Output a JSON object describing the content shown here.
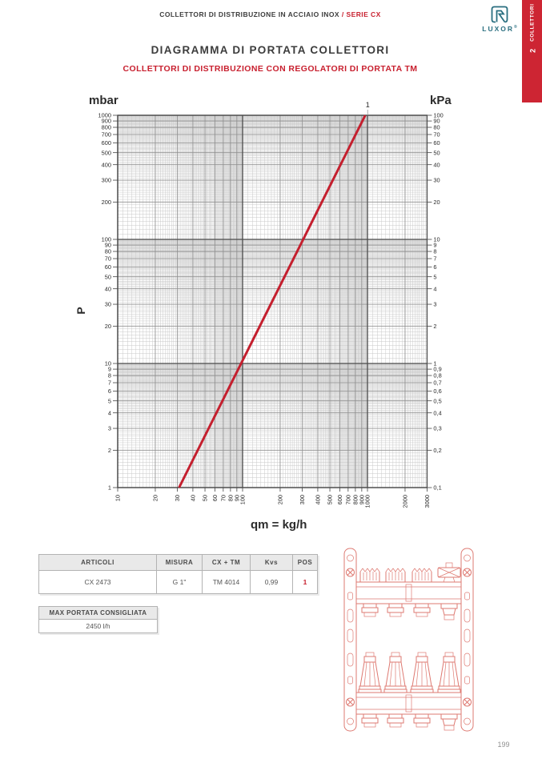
{
  "header": {
    "breadcrumb_plain": "COLLETTORI DI DISTRIBUZIONE IN ACCIAIO INOX",
    "breadcrumb_accent": " / SERIE CX",
    "logo_text": "LUXOR",
    "logo_reg": "®"
  },
  "side_tab": {
    "number": "2",
    "label": "COLLETTORI"
  },
  "title": "DIAGRAMMA DI PORTATA COLLETTORI",
  "subtitle": "COLLETTORI DI DISTRIBUZIONE CON REGOLATORI DI PORTATA TM",
  "chart_data": {
    "type": "line",
    "grid": "log-log dense",
    "x_axis": {
      "label": "qm = kg/h",
      "scale": "log",
      "range": [
        10,
        3000
      ],
      "ticks": [
        10,
        20,
        30,
        40,
        50,
        60,
        70,
        80,
        90,
        100,
        200,
        300,
        400,
        500,
        600,
        700,
        800,
        900,
        1000,
        2000,
        3000
      ]
    },
    "y_axis_left": {
      "unit": "mbar",
      "label": "P",
      "scale": "log",
      "range": [
        1,
        1000
      ],
      "ticks": [
        1000,
        900,
        800,
        700,
        600,
        500,
        400,
        300,
        200,
        100,
        90,
        80,
        70,
        60,
        50,
        40,
        30,
        20,
        10,
        9,
        8,
        7,
        6,
        5,
        4,
        3,
        2,
        1
      ]
    },
    "y_axis_right": {
      "unit": "kPa",
      "scale": "log",
      "range": [
        0.1,
        100
      ],
      "ticks": [
        {
          "v": 100,
          "l": "100"
        },
        {
          "v": 90,
          "l": "90"
        },
        {
          "v": 80,
          "l": "80"
        },
        {
          "v": 70,
          "l": "70"
        },
        {
          "v": 60,
          "l": "60"
        },
        {
          "v": 50,
          "l": "50"
        },
        {
          "v": 40,
          "l": "40"
        },
        {
          "v": 30,
          "l": "30"
        },
        {
          "v": 20,
          "l": "20"
        },
        {
          "v": 10,
          "l": "10"
        },
        {
          "v": 9,
          "l": "9"
        },
        {
          "v": 8,
          "l": "8"
        },
        {
          "v": 7,
          "l": "7"
        },
        {
          "v": 6,
          "l": "6"
        },
        {
          "v": 5,
          "l": "5"
        },
        {
          "v": 4,
          "l": "4"
        },
        {
          "v": 3,
          "l": "3"
        },
        {
          "v": 2,
          "l": "2"
        },
        {
          "v": 1,
          "l": "1"
        },
        {
          "v": 0.9,
          "l": "0,9"
        },
        {
          "v": 0.8,
          "l": "0,8"
        },
        {
          "v": 0.7,
          "l": "0,7"
        },
        {
          "v": 0.6,
          "l": "0,6"
        },
        {
          "v": 0.5,
          "l": "0,5"
        },
        {
          "v": 0.4,
          "l": "0,4"
        },
        {
          "v": 0.3,
          "l": "0,3"
        },
        {
          "v": 0.2,
          "l": "0,2"
        },
        {
          "v": 0.1,
          "l": "0,1"
        }
      ]
    },
    "series": [
      {
        "label": "1",
        "color": "#c41f2e",
        "points_qm_mbar": [
          [
            31,
            1
          ],
          [
            960,
            1000
          ]
        ]
      }
    ]
  },
  "table": {
    "headers": [
      "ARTICOLI",
      "MISURA",
      "CX + TM",
      "Kvs",
      "POS"
    ],
    "rows": [
      [
        "CX 2473",
        "G 1\"",
        "TM 4014",
        "0,99",
        "1"
      ]
    ]
  },
  "max_portata": {
    "label": "MAX PORTATA CONSIGLIATA",
    "value": "2450 l/h"
  },
  "page_number": "199"
}
